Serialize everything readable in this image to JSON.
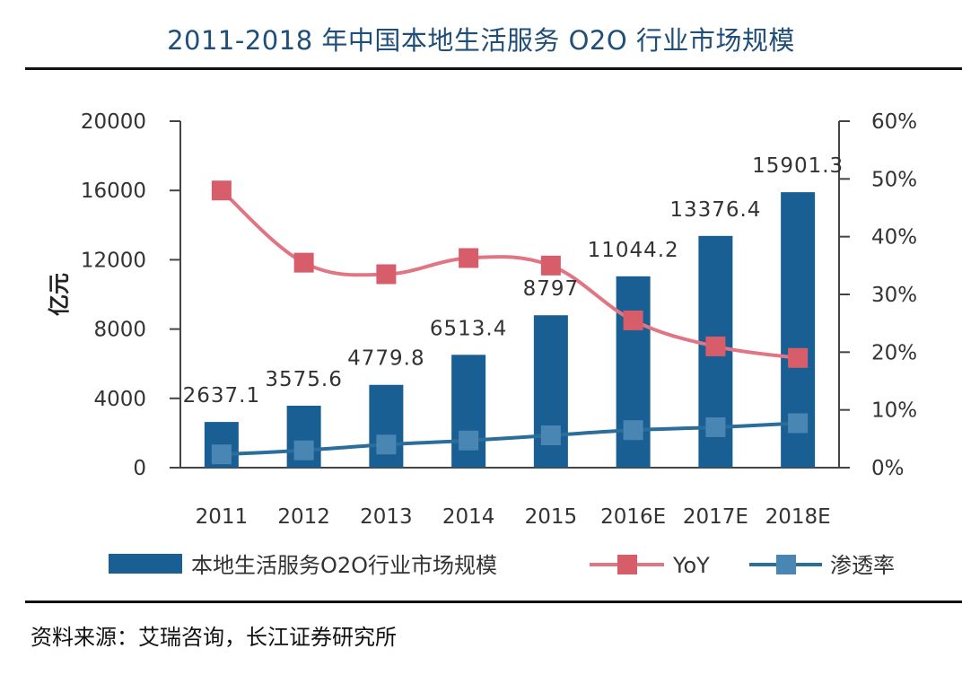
{
  "title": "2011-2018 年中国本地生活服务 O2O 行业市场规模",
  "source": "资料来源：艾瑞咨询，长江证券研究所",
  "colors": {
    "bar": "#1a5f94",
    "yoy_line": "#e07683",
    "yoy_marker": "#d85d6b",
    "penetration_line": "#2b6d9b",
    "penetration_marker": "#4a86b3",
    "title": "#1f4e79"
  },
  "chart_data": {
    "type": "bar",
    "title": "2011-2018 年中国本地生活服务 O2O 行业市场规模",
    "categories": [
      "2011",
      "2012",
      "2013",
      "2014",
      "2015",
      "2016E",
      "2017E",
      "2018E"
    ],
    "ylabel": "亿元",
    "ylim": [
      0,
      20000
    ],
    "y_ticks": [
      "0",
      "4000",
      "8000",
      "12000",
      "16000",
      "20000"
    ],
    "y2lim": [
      0,
      0.6
    ],
    "y2_ticks": [
      "0%",
      "10%",
      "20%",
      "30%",
      "40%",
      "50%",
      "60%"
    ],
    "grid": false,
    "legend_position": "bottom",
    "series": [
      {
        "name": "本地生活服务O2O行业市场规模",
        "type": "bar",
        "axis": "left",
        "values": [
          2637.1,
          3575.6,
          4779.8,
          6513.4,
          8797,
          11044.2,
          13376.4,
          15901.3
        ],
        "labels": [
          "2637.1",
          "3575.6",
          "4779.8",
          "6513.4",
          "8797",
          "11044.2",
          "13376.4",
          "15901.3"
        ]
      },
      {
        "name": "YoY",
        "type": "line",
        "axis": "right",
        "marker": "square",
        "values": [
          0.48,
          0.355,
          0.335,
          0.363,
          0.35,
          0.255,
          0.21,
          0.19
        ]
      },
      {
        "name": "渗透率",
        "type": "line",
        "axis": "right",
        "marker": "square",
        "values": [
          0.023,
          0.03,
          0.04,
          0.047,
          0.056,
          0.065,
          0.07,
          0.077
        ]
      }
    ]
  }
}
